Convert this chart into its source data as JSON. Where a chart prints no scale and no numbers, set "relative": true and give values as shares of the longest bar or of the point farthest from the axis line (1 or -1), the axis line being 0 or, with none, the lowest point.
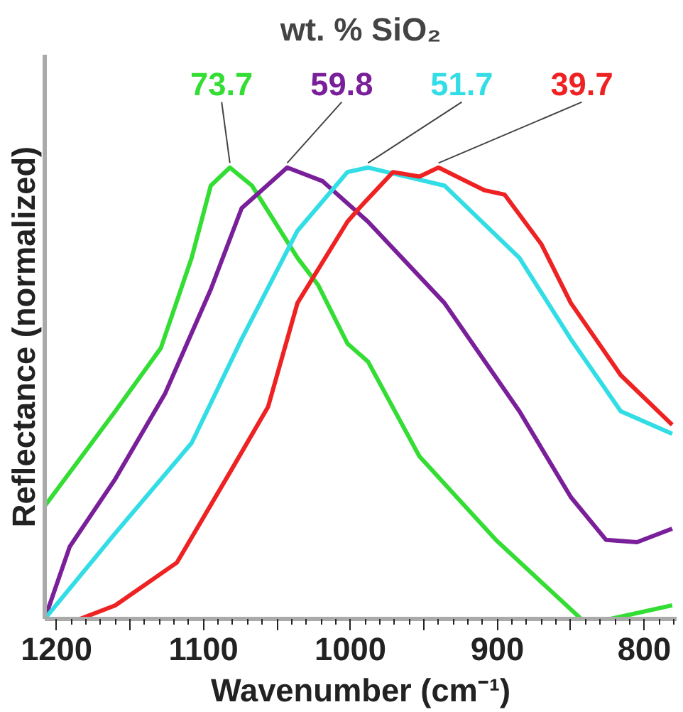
{
  "chart_data": {
    "type": "line",
    "title": "wt. % SiO₂",
    "xlabel": "Wavenumber (cm⁻¹)",
    "ylabel": "Reflectance (normalized)",
    "relative": true,
    "xlim": [
      1208,
      778
    ],
    "xticks": [
      1200,
      {
        "value": 1150,
        "label": null
      },
      1100,
      {
        "value": 1050,
        "label": null
      },
      1000,
      {
        "value": 950,
        "label": null
      },
      900,
      {
        "value": 850,
        "label": null
      },
      800
    ],
    "grid": false,
    "marker": "none",
    "line_style": "solid",
    "series": [
      {
        "name": "73.7",
        "color": "#33dd33",
        "x": [
          1208,
          1160,
          1129,
          1108,
          1095,
          1082,
          1067,
          1036,
          1022,
          1002,
          988,
          953,
          901,
          843,
          823,
          781
        ],
        "values": [
          0.25,
          0.46,
          0.6,
          0.8,
          0.96,
          1.0,
          0.96,
          0.8,
          0.74,
          0.61,
          0.57,
          0.36,
          0.175,
          0,
          0,
          0.03
        ]
      },
      {
        "name": "59.8",
        "color": "#7a1f9a",
        "x": [
          1208,
          1191,
          1160,
          1126,
          1095,
          1074,
          1043,
          1019,
          988,
          936,
          885,
          850,
          826,
          805,
          781
        ],
        "values": [
          0,
          0.16,
          0.31,
          0.5,
          0.73,
          0.91,
          1.0,
          0.97,
          0.88,
          0.7,
          0.46,
          0.27,
          0.175,
          0.17,
          0.2
        ]
      },
      {
        "name": "51.7",
        "color": "#33dde6",
        "x": [
          1208,
          1160,
          1108,
          1074,
          1036,
          1002,
          988,
          936,
          885,
          850,
          816,
          781
        ],
        "values": [
          0,
          0.19,
          0.39,
          0.62,
          0.86,
          0.99,
          1.0,
          0.96,
          0.8,
          0.62,
          0.46,
          0.41
        ]
      },
      {
        "name": "39.7",
        "color": "#ee2222",
        "x": [
          1208,
          1184,
          1160,
          1118,
          1081,
          1056,
          1036,
          1002,
          994,
          971,
          953,
          940,
          909,
          895,
          870,
          850,
          816,
          781
        ],
        "values": [
          0,
          0,
          0.03,
          0.125,
          0.33,
          0.47,
          0.7,
          0.88,
          0.91,
          0.99,
          0.98,
          1.0,
          0.95,
          0.94,
          0.83,
          0.7,
          0.54,
          0.43
        ]
      }
    ]
  }
}
